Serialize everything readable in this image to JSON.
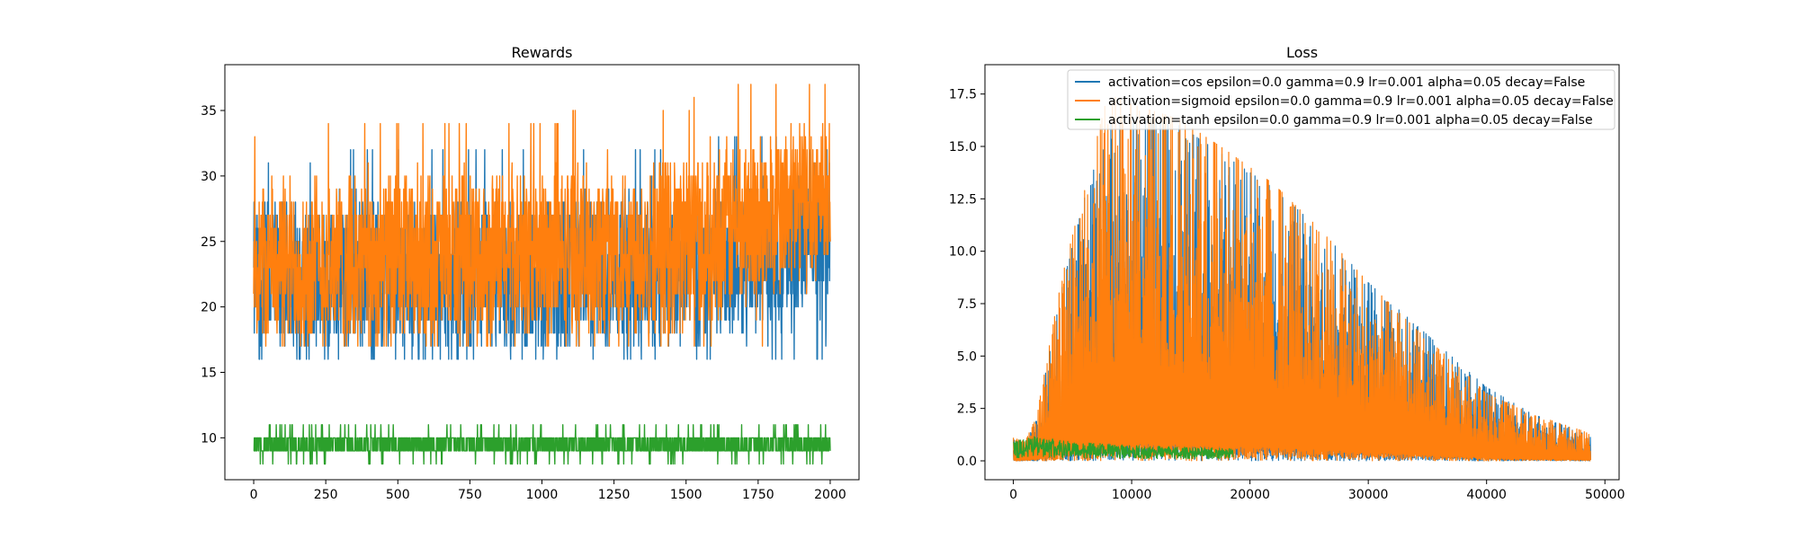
{
  "colors": {
    "cos": "#1f77b4",
    "sigmoid": "#ff7f0e",
    "tanh": "#2ca02c"
  },
  "chart_data": [
    {
      "type": "line",
      "title": "Rewards",
      "xlabel": "",
      "ylabel": "",
      "xlim": [
        -100,
        2100
      ],
      "ylim": [
        6.8,
        38.5
      ],
      "xticks": [
        0,
        250,
        500,
        750,
        1000,
        1250,
        1500,
        1750,
        2000
      ],
      "yticks": [
        10,
        15,
        20,
        25,
        30,
        35
      ],
      "legend": "none",
      "series": [
        {
          "key": "cos",
          "x_range": [
            0,
            2000
          ],
          "n": 2000,
          "trend": [
            [
              0,
              22
            ],
            [
              1000,
              22.5
            ],
            [
              1500,
              23
            ],
            [
              1800,
              24
            ],
            [
              2000,
              26
            ]
          ],
          "min": 16,
          "max": 34
        },
        {
          "key": "sigmoid",
          "x_range": [
            0,
            2000
          ],
          "n": 2000,
          "trend": [
            [
              0,
              23
            ],
            [
              1000,
              24
            ],
            [
              1500,
              25
            ],
            [
              1800,
              27
            ],
            [
              2000,
              29
            ]
          ],
          "min": 17,
          "max": 37
        },
        {
          "key": "tanh",
          "x_range": [
            0,
            2000
          ],
          "n": 2000,
          "trend": [
            [
              0,
              9.4
            ],
            [
              2000,
              9.4
            ]
          ],
          "min": 8,
          "max": 11
        }
      ]
    },
    {
      "type": "line",
      "title": "Loss",
      "xlabel": "",
      "ylabel": "",
      "xlim": [
        -2400,
        51200
      ],
      "ylim": [
        -0.9,
        18.9
      ],
      "xticks": [
        0,
        10000,
        20000,
        30000,
        40000,
        50000
      ],
      "yticks": [
        0.0,
        2.5,
        5.0,
        7.5,
        10.0,
        12.5,
        15.0,
        17.5
      ],
      "legend": "top-right",
      "series": [
        {
          "key": "cos",
          "name": "activation=cos epsilon=0.0 gamma=0.9 lr=0.001 alpha=0.05 decay=False",
          "x_range": [
            0,
            48800
          ],
          "envelope": [
            [
              0,
              1.0
            ],
            [
              1000,
              0.8
            ],
            [
              2000,
              2.0
            ],
            [
              4000,
              8.0
            ],
            [
              6000,
              12.5
            ],
            [
              8000,
              16.0
            ],
            [
              10000,
              16.5
            ],
            [
              14000,
              16.0
            ],
            [
              18000,
              14.5
            ],
            [
              22000,
              13.0
            ],
            [
              26000,
              11.0
            ],
            [
              30000,
              8.5
            ],
            [
              34000,
              6.5
            ],
            [
              38000,
              4.5
            ],
            [
              40000,
              3.5
            ],
            [
              44000,
              2.2
            ],
            [
              48800,
              1.2
            ]
          ]
        },
        {
          "key": "sigmoid",
          "name": "activation=sigmoid epsilon=0.0 gamma=0.9 lr=0.001 alpha=0.05 decay=False",
          "x_range": [
            0,
            48800
          ],
          "envelope": [
            [
              0,
              1.1
            ],
            [
              1000,
              0.9
            ],
            [
              2000,
              2.2
            ],
            [
              4000,
              8.5
            ],
            [
              6000,
              13.0
            ],
            [
              8000,
              17.5
            ],
            [
              10000,
              17.0
            ],
            [
              14000,
              16.3
            ],
            [
              18000,
              14.8
            ],
            [
              22000,
              13.2
            ],
            [
              26000,
              11.0
            ],
            [
              30000,
              8.5
            ],
            [
              34000,
              6.3
            ],
            [
              38000,
              4.3
            ],
            [
              40000,
              3.2
            ],
            [
              44000,
              2.2
            ],
            [
              48800,
              1.3
            ]
          ]
        },
        {
          "key": "tanh",
          "name": "activation=tanh epsilon=0.0 gamma=0.9 lr=0.001 alpha=0.05 decay=False",
          "x_range": [
            0,
            18600
          ],
          "envelope": [
            [
              0,
              0.9
            ],
            [
              1500,
              1.2
            ],
            [
              5000,
              0.9
            ],
            [
              8000,
              0.8
            ],
            [
              12000,
              0.7
            ],
            [
              18600,
              0.6
            ]
          ]
        }
      ]
    }
  ]
}
